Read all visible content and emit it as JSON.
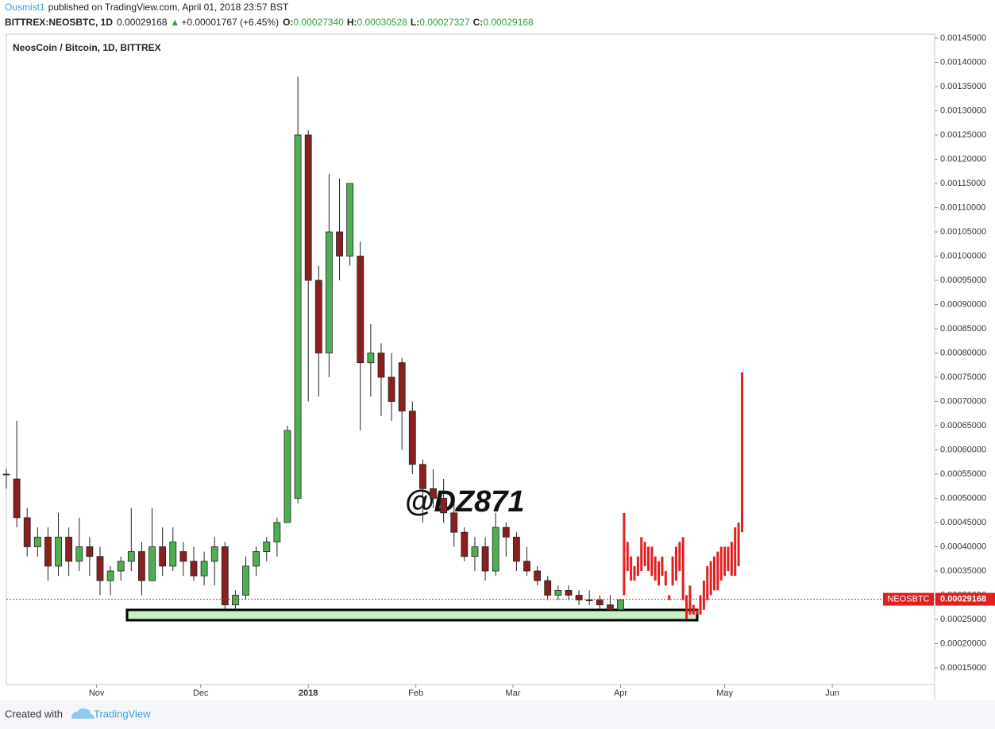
{
  "header": {
    "author": "Ousmist1",
    "published": "published on TradingView.com, April 01, 2018 23:57 BST",
    "symbol": "BITTREX:NEOSBTC, 1D",
    "price": "0.00029168",
    "arrow": "▲",
    "change": "+0.00001767 (+6.45%)",
    "o_label": "O:",
    "o": "0.00027340",
    "h_label": "H:",
    "h": "0.00030528",
    "l_label": "L:",
    "l": "0.00027327",
    "c_label": "C:",
    "c": "0.00029168"
  },
  "footer": {
    "created": "Created with",
    "brand": "TradingView"
  },
  "chart_data": {
    "type": "candlestick",
    "title": "NeosCoin / Bitcoin, 1D, BITTREX",
    "watermark": "@DZ871",
    "up_color": "#4caf50",
    "down_color": "#8b1e1e",
    "x": [
      0,
      3,
      6,
      9,
      12,
      15,
      18,
      21,
      24,
      27,
      30,
      33,
      36,
      39,
      42,
      45,
      48,
      51,
      54,
      57,
      60,
      63,
      66,
      69,
      72,
      75,
      78,
      81,
      84,
      87,
      90,
      93,
      96,
      99,
      102,
      105,
      108,
      111,
      114,
      117,
      120,
      123,
      126,
      129,
      132,
      135,
      138,
      141,
      144,
      147,
      150,
      153,
      156,
      159,
      162,
      165,
      168,
      171,
      174,
      177
    ],
    "open": [
      0.00055,
      0.00054,
      0.00046,
      0.0004,
      0.00042,
      0.00036,
      0.00042,
      0.00037,
      0.0004,
      0.00038,
      0.00033,
      0.00035,
      0.00037,
      0.00039,
      0.00033,
      0.0004,
      0.00036,
      0.00039,
      0.00037,
      0.00034,
      0.00037,
      0.0004,
      0.00028,
      0.0003,
      0.00036,
      0.00039,
      0.00041,
      0.00045,
      0.0005,
      0.00125,
      0.00095,
      0.0008,
      0.00105,
      0.001,
      0.001,
      0.00078,
      0.0008,
      0.00075,
      0.00078,
      0.00068,
      0.00057,
      0.00052,
      0.0005,
      0.00047,
      0.00043,
      0.00038,
      0.0004,
      0.00035,
      0.00044,
      0.00042,
      0.00037,
      0.00035,
      0.00033,
      0.0003,
      0.00031,
      0.0003,
      0.00029,
      0.00029,
      0.00028,
      0.00027
    ],
    "high": [
      0.00056,
      0.00066,
      0.00048,
      0.00044,
      0.00044,
      0.00047,
      0.00044,
      0.00046,
      0.00042,
      0.0004,
      0.00036,
      0.00038,
      0.00048,
      0.00041,
      0.00048,
      0.00044,
      0.00044,
      0.00041,
      0.0004,
      0.00039,
      0.00042,
      0.00041,
      0.00031,
      0.00038,
      0.0004,
      0.00042,
      0.00046,
      0.00065,
      0.00137,
      0.00126,
      0.00098,
      0.00117,
      0.00116,
      0.00115,
      0.00103,
      0.00086,
      0.00082,
      0.0008,
      0.00079,
      0.0007,
      0.00058,
      0.00056,
      0.00054,
      0.00049,
      0.00044,
      0.00042,
      0.00042,
      0.00047,
      0.00045,
      0.00043,
      0.0004,
      0.00036,
      0.00034,
      0.00032,
      0.00032,
      0.00031,
      0.00031,
      0.0003,
      0.0003,
      0.00029
    ],
    "low": [
      0.00052,
      0.00044,
      0.00038,
      0.00038,
      0.00033,
      0.00034,
      0.00034,
      0.00035,
      0.00034,
      0.0003,
      0.0003,
      0.00033,
      0.00035,
      0.0003,
      0.00033,
      0.00034,
      0.00035,
      0.00034,
      0.00033,
      0.00032,
      0.00032,
      0.00027,
      0.00027,
      0.00029,
      0.00034,
      0.00037,
      0.00038,
      0.00045,
      0.00049,
      0.0007,
      0.00071,
      0.00075,
      0.00095,
      0.00098,
      0.00064,
      0.00071,
      0.00067,
      0.00066,
      0.0006,
      0.00055,
      0.00045,
      0.00048,
      0.00045,
      0.0004,
      0.00037,
      0.00035,
      0.00033,
      0.00034,
      0.00038,
      0.00035,
      0.00034,
      0.00032,
      0.00029,
      0.00029,
      0.00029,
      0.00028,
      0.00028,
      0.00027,
      0.00027,
      0.00027
    ],
    "close": [
      0.00055,
      0.00046,
      0.0004,
      0.00042,
      0.00036,
      0.00042,
      0.00037,
      0.0004,
      0.00038,
      0.00033,
      0.00035,
      0.00037,
      0.00039,
      0.00033,
      0.0004,
      0.00036,
      0.00041,
      0.00037,
      0.00034,
      0.00037,
      0.0004,
      0.00028,
      0.0003,
      0.00036,
      0.00039,
      0.00041,
      0.00045,
      0.00064,
      0.00125,
      0.00095,
      0.0008,
      0.00105,
      0.001,
      0.00115,
      0.00078,
      0.0008,
      0.00075,
      0.0007,
      0.00068,
      0.00057,
      0.00052,
      0.0005,
      0.00047,
      0.00043,
      0.00038,
      0.0004,
      0.00035,
      0.00044,
      0.00042,
      0.00037,
      0.00035,
      0.00033,
      0.0003,
      0.00031,
      0.0003,
      0.00029,
      0.00029,
      0.00028,
      0.00027,
      0.00029
    ],
    "projection": {
      "color": "#e02020",
      "x": [
        178,
        179,
        180,
        181,
        182,
        183,
        184,
        185,
        186,
        187,
        188,
        189,
        190,
        191,
        192,
        193,
        194,
        195,
        196,
        197,
        198,
        199,
        200,
        201,
        202,
        203,
        204,
        205,
        206,
        207,
        208,
        209,
        210,
        211,
        212
      ],
      "high": [
        0.00047,
        0.00041,
        0.00038,
        0.00036,
        0.00038,
        0.00042,
        0.00041,
        0.0004,
        0.0004,
        0.00038,
        0.00037,
        0.00038,
        0.00035,
        0.0003,
        0.00038,
        0.0004,
        0.00041,
        0.00042,
        0.0003,
        0.00032,
        0.00028,
        0.00027,
        0.0003,
        0.00033,
        0.00036,
        0.00037,
        0.00038,
        0.00039,
        0.0004,
        0.0004,
        0.0004,
        0.00041,
        0.00044,
        0.00045,
        0.00076
      ],
      "low": [
        0.0003,
        0.00035,
        0.00033,
        0.00033,
        0.00034,
        0.00035,
        0.00036,
        0.00035,
        0.00034,
        0.00033,
        0.00032,
        0.00034,
        0.00032,
        0.00029,
        0.00032,
        0.00033,
        0.00035,
        0.00029,
        0.00025,
        0.00026,
        0.00026,
        0.00026,
        0.00026,
        0.00027,
        0.00029,
        0.0003,
        0.00031,
        0.00031,
        0.00033,
        0.00034,
        0.00035,
        0.00034,
        0.00034,
        0.00036,
        0.00043
      ]
    },
    "last_price": 0.00029168,
    "last_price_symbol": "NEOSBTC",
    "last_price_color": "#e01f1f",
    "xlim": [
      0,
      267.5
    ],
    "xticks": [
      {
        "value": 26,
        "label": "Nov"
      },
      {
        "value": 56,
        "label": "Dec"
      },
      {
        "value": 87,
        "label": "2018"
      },
      {
        "value": 118,
        "label": "Feb"
      },
      {
        "value": 146,
        "label": "Mar"
      },
      {
        "value": 177,
        "label": "Apr"
      },
      {
        "value": 207,
        "label": "May"
      },
      {
        "value": 238,
        "label": "Jun"
      }
    ],
    "ylim": [
      0.0001156,
      0.0014582
    ],
    "yticks": [
      {
        "value": 0.00015,
        "label": "0.00015000"
      },
      {
        "value": 0.0002,
        "label": "0.00020000"
      },
      {
        "value": 0.00025,
        "label": "0.00025000"
      },
      {
        "value": 0.0003,
        "label": "0.00030000"
      },
      {
        "value": 0.00035,
        "label": "0.00035000"
      },
      {
        "value": 0.0004,
        "label": "0.00040000"
      },
      {
        "value": 0.00045,
        "label": "0.00045000"
      },
      {
        "value": 0.0005,
        "label": "0.00050000"
      },
      {
        "value": 0.00055,
        "label": "0.00055000"
      },
      {
        "value": 0.0006,
        "label": "0.00060000"
      },
      {
        "value": 0.00065,
        "label": "0.00065000"
      },
      {
        "value": 0.0007,
        "label": "0.00070000"
      },
      {
        "value": 0.00075,
        "label": "0.00075000"
      },
      {
        "value": 0.0008,
        "label": "0.00080000"
      },
      {
        "value": 0.00085,
        "label": "0.00085000"
      },
      {
        "value": 0.0009,
        "label": "0.00090000"
      },
      {
        "value": 0.00095,
        "label": "0.00095000"
      },
      {
        "value": 0.001,
        "label": "0.00100000"
      },
      {
        "value": 0.00105,
        "label": "0.00105000"
      },
      {
        "value": 0.0011,
        "label": "0.00110000"
      },
      {
        "value": 0.00115,
        "label": "0.00115000"
      },
      {
        "value": 0.0012,
        "label": "0.00120000"
      },
      {
        "value": 0.00125,
        "label": "0.00125000"
      },
      {
        "value": 0.0013,
        "label": "0.00130000"
      },
      {
        "value": 0.00135,
        "label": "0.00135000"
      },
      {
        "value": 0.0014,
        "label": "0.00140000"
      },
      {
        "value": 0.00145,
        "label": "0.00145000"
      }
    ]
  }
}
